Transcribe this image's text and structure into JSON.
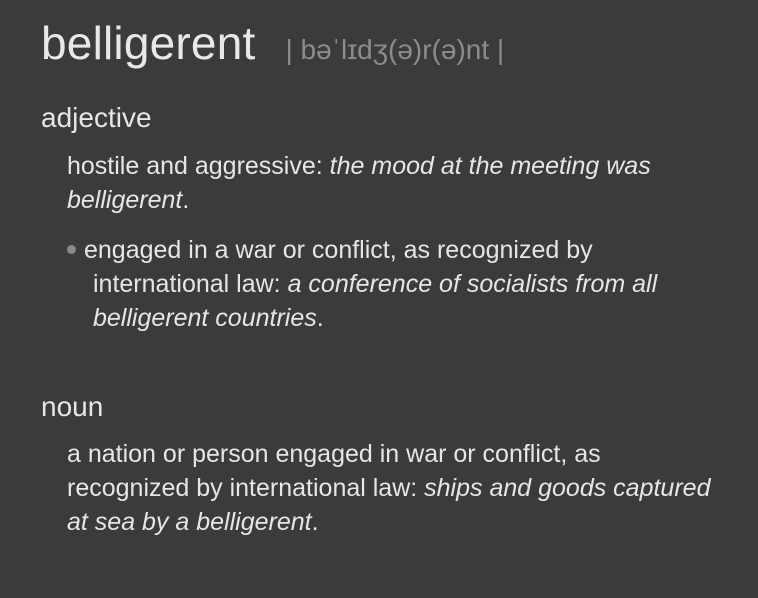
{
  "entry": {
    "headword": "belligerent",
    "pronunciation": "| bəˈlɪdʒ(ə)r(ə)nt |"
  },
  "adjective": {
    "label": "adjective",
    "sense1": {
      "definition": "hostile and aggressive: ",
      "example": "the mood at the meeting was belligerent",
      "end": "."
    },
    "sense2": {
      "definition_line1": "engaged in a war or conflict, as recognized by",
      "definition_line2": "international law: ",
      "example": "a conference of socialists from all belligerent countries",
      "end": "."
    }
  },
  "noun": {
    "label": "noun",
    "sense1": {
      "definition": "a nation or person engaged in war or conflict, as recognized by international law: ",
      "example": "ships and goods captured at sea by a belligerent",
      "end": "."
    }
  },
  "colors": {
    "background": "#3b3b3b",
    "text": "#e6e6e6",
    "muted": "#8c8c8c"
  }
}
